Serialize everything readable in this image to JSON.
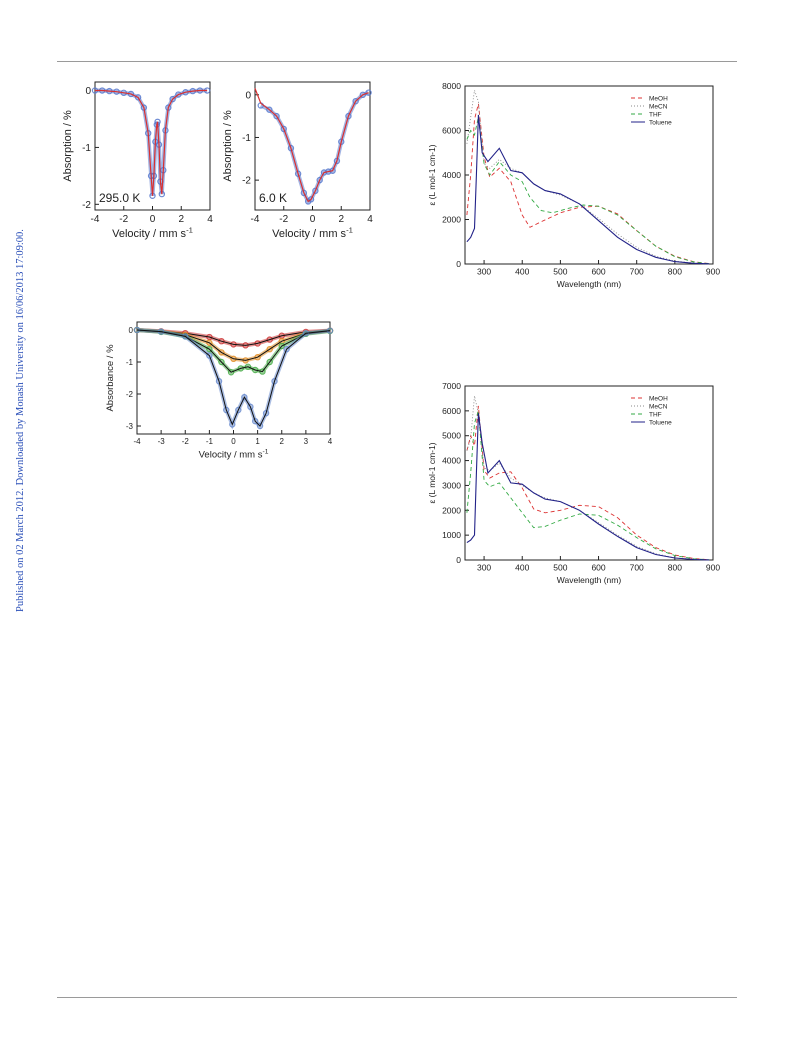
{
  "page": {
    "side_note": "Published on 02 March 2012. Downloaded by Monash University on 16/06/2013 17:09:00."
  },
  "figures": {
    "moss_a": {
      "temp_label": "295.0 K"
    },
    "moss_b": {
      "temp_label": "6.0 K"
    }
  },
  "chart_data": [
    {
      "id": "mossbauer-295K",
      "type": "scatter",
      "title": "",
      "xlabel": "Velocity / mm s",
      "xlabel_sup": "-1",
      "ylabel": "Absorption / %",
      "xlim": [
        -4,
        4
      ],
      "ylim": [
        -2.1,
        0.15
      ],
      "xticks": [
        -4,
        -2,
        0,
        2,
        4
      ],
      "yticks": [
        0,
        -1,
        -2
      ],
      "annotation": "295.0 K",
      "series": [
        {
          "kind": "points",
          "color": "#5577cc",
          "x": [
            -4,
            -3.5,
            -3,
            -2.5,
            -2,
            -1.5,
            -1,
            -0.6,
            -0.3,
            -0.1,
            0,
            0.1,
            0.2,
            0.3,
            0.35,
            0.45,
            0.55,
            0.65,
            0.75,
            0.9,
            1.1,
            1.4,
            1.8,
            2.3,
            2.8,
            3.3,
            3.8
          ],
          "y": [
            0,
            0,
            -0.01,
            -0.02,
            -0.04,
            -0.06,
            -0.12,
            -0.3,
            -0.75,
            -1.5,
            -1.85,
            -1.5,
            -0.9,
            -0.6,
            -0.55,
            -0.95,
            -1.6,
            -1.82,
            -1.4,
            -0.7,
            -0.3,
            -0.15,
            -0.07,
            -0.03,
            -0.01,
            0,
            0
          ]
        },
        {
          "kind": "fit",
          "color": "#d93030",
          "x": [
            -4,
            -3.5,
            -3,
            -2.5,
            -2,
            -1.5,
            -1,
            -0.6,
            -0.3,
            -0.1,
            0,
            0.1,
            0.2,
            0.3,
            0.35,
            0.45,
            0.55,
            0.65,
            0.75,
            0.9,
            1.1,
            1.4,
            1.8,
            2.3,
            2.8,
            3.3,
            3.8
          ],
          "y": [
            0,
            0,
            -0.01,
            -0.02,
            -0.04,
            -0.06,
            -0.12,
            -0.3,
            -0.75,
            -1.5,
            -1.85,
            -1.5,
            -0.9,
            -0.6,
            -0.55,
            -0.95,
            -1.6,
            -1.82,
            -1.4,
            -0.7,
            -0.3,
            -0.15,
            -0.07,
            -0.03,
            -0.01,
            0,
            0
          ]
        }
      ]
    },
    {
      "id": "mossbauer-6K",
      "type": "scatter",
      "title": "",
      "xlabel": "Velocity / mm s",
      "xlabel_sup": "-1",
      "ylabel": "Absorption / %",
      "xlim": [
        -4,
        4
      ],
      "ylim": [
        -2.7,
        0.3
      ],
      "xticks": [
        -4,
        -2,
        0,
        2,
        4
      ],
      "yticks": [
        0,
        -1,
        -2
      ],
      "annotation": "6.0 K",
      "series": [
        {
          "kind": "points",
          "color": "#5577cc",
          "x": [
            -3.6,
            -3,
            -2.5,
            -2,
            -1.5,
            -1,
            -0.6,
            -0.3,
            -0.1,
            0.2,
            0.5,
            0.8,
            1.1,
            1.4,
            1.7,
            2,
            2.5,
            3,
            3.5,
            3.9
          ],
          "y": [
            -0.25,
            -0.35,
            -0.5,
            -0.8,
            -1.25,
            -1.85,
            -2.3,
            -2.5,
            -2.45,
            -2.25,
            -2.0,
            -1.82,
            -1.8,
            -1.78,
            -1.55,
            -1.1,
            -0.5,
            -0.15,
            0,
            0.05
          ]
        },
        {
          "kind": "fit",
          "color": "#d93030",
          "x": [
            -4,
            -3.6,
            -3,
            -2.5,
            -2,
            -1.5,
            -1,
            -0.6,
            -0.3,
            -0.1,
            0.2,
            0.5,
            0.8,
            1.1,
            1.4,
            1.7,
            2,
            2.5,
            3,
            3.5,
            3.9
          ],
          "y": [
            0.15,
            -0.2,
            -0.35,
            -0.5,
            -0.8,
            -1.25,
            -1.85,
            -2.3,
            -2.5,
            -2.45,
            -2.25,
            -2.0,
            -1.82,
            -1.8,
            -1.78,
            -1.55,
            -1.1,
            -0.5,
            -0.15,
            0,
            0.05
          ]
        }
      ]
    },
    {
      "id": "mossbauer-variable",
      "type": "scatter",
      "title": "",
      "xlabel": "Velocity / mm s",
      "xlabel_sup": "-1",
      "ylabel": "Absorbance / %",
      "xlim": [
        -4,
        4
      ],
      "ylim": [
        -3.25,
        0.25
      ],
      "xticks": [
        -4,
        -3,
        -2,
        -1,
        0,
        1,
        2,
        3,
        4
      ],
      "yticks": [
        0,
        -1,
        -2,
        -3
      ],
      "series": [
        {
          "kind": "points+fit",
          "color": "#cc3333",
          "x": [
            -4,
            -3,
            -2,
            -1,
            -0.5,
            0,
            0.5,
            1,
            1.5,
            2,
            3,
            4
          ],
          "y": [
            0,
            -0.04,
            -0.1,
            -0.22,
            -0.35,
            -0.45,
            -0.48,
            -0.42,
            -0.3,
            -0.18,
            -0.06,
            -0.02
          ]
        },
        {
          "kind": "points+fit",
          "color": "#e08a20",
          "x": [
            -4,
            -3,
            -2,
            -1,
            -0.5,
            0,
            0.5,
            1,
            1.5,
            2,
            3,
            4
          ],
          "y": [
            0,
            -0.05,
            -0.15,
            -0.4,
            -0.7,
            -0.9,
            -0.95,
            -0.85,
            -0.6,
            -0.35,
            -0.1,
            -0.02
          ]
        },
        {
          "kind": "points+fit",
          "color": "#44aa44",
          "x": [
            -4,
            -3,
            -2,
            -1,
            -0.5,
            -0.1,
            0.3,
            0.6,
            0.9,
            1.2,
            1.5,
            2,
            3,
            4
          ],
          "y": [
            0,
            -0.06,
            -0.2,
            -0.6,
            -1.0,
            -1.32,
            -1.2,
            -1.15,
            -1.25,
            -1.3,
            -1.0,
            -0.5,
            -0.12,
            -0.03
          ]
        },
        {
          "kind": "points+fit",
          "color": "#6688cc",
          "x": [
            -4,
            -3,
            -2,
            -1,
            -0.6,
            -0.3,
            -0.05,
            0.2,
            0.45,
            0.7,
            0.9,
            1.1,
            1.35,
            1.7,
            2.2,
            3,
            4
          ],
          "y": [
            0,
            -0.05,
            -0.2,
            -0.8,
            -1.6,
            -2.5,
            -2.95,
            -2.5,
            -2.1,
            -2.4,
            -2.85,
            -3.0,
            -2.6,
            -1.6,
            -0.6,
            -0.1,
            -0.02
          ]
        }
      ]
    },
    {
      "id": "uvvis-1",
      "type": "line",
      "title": "",
      "xlabel": "Wavelength (nm)",
      "ylabel": "ε (L mol",
      "ylabel_full": "ε (L mol-1 cm-1)",
      "xlim": [
        250,
        900
      ],
      "ylim": [
        0,
        8000
      ],
      "xticks": [
        300,
        400,
        500,
        600,
        700,
        800,
        900
      ],
      "yticks": [
        0,
        2000,
        4000,
        6000,
        8000
      ],
      "legend": {
        "placement": "top-right",
        "entries": [
          "MeOH",
          "MeCN",
          "THF",
          "Toluene"
        ]
      },
      "series": [
        {
          "name": "MeOH",
          "color": "#dd3333",
          "dash": "4,3",
          "x": [
            255,
            265,
            275,
            285,
            300,
            315,
            340,
            370,
            400,
            420,
            450,
            500,
            550,
            600,
            650,
            700,
            750,
            800,
            850,
            890
          ],
          "y": [
            2200,
            4000,
            6500,
            7200,
            4800,
            3900,
            4300,
            3700,
            2200,
            1650,
            1900,
            2300,
            2550,
            2600,
            2250,
            1500,
            800,
            350,
            100,
            20
          ]
        },
        {
          "name": "MeCN",
          "color": "#888888",
          "dash": "1,2",
          "x": [
            255,
            265,
            275,
            285,
            300,
            315,
            340,
            370,
            400,
            430,
            460,
            500,
            550,
            600,
            650,
            700,
            750,
            800,
            850,
            890
          ],
          "y": [
            5400,
            6600,
            7800,
            7300,
            4500,
            4300,
            4700,
            4300,
            4100,
            3600,
            3300,
            3100,
            2700,
            2050,
            1350,
            750,
            350,
            130,
            40,
            10
          ]
        },
        {
          "name": "THF",
          "color": "#33aa44",
          "dash": "4,3",
          "x": [
            255,
            265,
            275,
            285,
            300,
            315,
            340,
            370,
            400,
            420,
            450,
            480,
            520,
            560,
            600,
            650,
            700,
            750,
            800,
            850,
            890
          ],
          "y": [
            5600,
            6000,
            5800,
            6600,
            4500,
            4000,
            4600,
            4000,
            3700,
            3000,
            2400,
            2300,
            2500,
            2650,
            2600,
            2200,
            1500,
            800,
            330,
            90,
            15
          ]
        },
        {
          "name": "Toluene",
          "color": "#222288",
          "dash": "",
          "x": [
            255,
            265,
            275,
            280,
            285,
            295,
            310,
            340,
            370,
            400,
            430,
            460,
            500,
            550,
            600,
            650,
            700,
            750,
            800,
            850,
            890
          ],
          "y": [
            1000,
            1200,
            1600,
            4000,
            6700,
            5000,
            4600,
            5200,
            4200,
            4100,
            3600,
            3300,
            3150,
            2700,
            1950,
            1200,
            650,
            300,
            110,
            30,
            8
          ]
        }
      ]
    },
    {
      "id": "uvvis-2",
      "type": "line",
      "title": "",
      "xlabel": "Wavelength (nm)",
      "ylabel": "ε (L mol",
      "ylabel_full": "ε (L mol-1 cm-1)",
      "xlim": [
        250,
        900
      ],
      "ylim": [
        0,
        7000
      ],
      "xticks": [
        300,
        400,
        500,
        600,
        700,
        800,
        900
      ],
      "yticks": [
        0,
        1000,
        2000,
        3000,
        4000,
        5000,
        6000,
        7000
      ],
      "legend": {
        "placement": "top-right",
        "entries": [
          "MeOH",
          "MeCN",
          "THF",
          "Toluene"
        ]
      },
      "series": [
        {
          "name": "MeOH",
          "color": "#dd3333",
          "dash": "4,3",
          "x": [
            255,
            265,
            275,
            285,
            300,
            315,
            340,
            370,
            400,
            430,
            460,
            500,
            550,
            600,
            650,
            700,
            750,
            800,
            850,
            890
          ],
          "y": [
            4400,
            5000,
            4600,
            6200,
            3600,
            3300,
            3500,
            3550,
            2900,
            2050,
            1900,
            2000,
            2200,
            2150,
            1700,
            1000,
            500,
            200,
            60,
            10
          ]
        },
        {
          "name": "MeCN",
          "color": "#888888",
          "dash": "1,2",
          "x": [
            255,
            265,
            275,
            285,
            300,
            315,
            340,
            370,
            400,
            430,
            460,
            500,
            550,
            600,
            650,
            700,
            750,
            800,
            850,
            890
          ],
          "y": [
            4400,
            4900,
            6600,
            5900,
            3700,
            3600,
            3900,
            3300,
            3000,
            2700,
            2500,
            2350,
            2000,
            1500,
            1000,
            550,
            250,
            90,
            30,
            8
          ]
        },
        {
          "name": "THF",
          "color": "#33aa44",
          "dash": "4,3",
          "x": [
            255,
            265,
            275,
            285,
            300,
            315,
            340,
            370,
            400,
            430,
            460,
            500,
            550,
            600,
            650,
            700,
            750,
            800,
            850,
            890
          ],
          "y": [
            1900,
            3500,
            5500,
            6000,
            3200,
            2950,
            3100,
            2500,
            1900,
            1300,
            1350,
            1600,
            1850,
            1800,
            1400,
            900,
            450,
            180,
            50,
            10
          ]
        },
        {
          "name": "Toluene",
          "color": "#222288",
          "dash": "",
          "x": [
            255,
            265,
            275,
            280,
            285,
            295,
            310,
            340,
            370,
            400,
            430,
            460,
            500,
            550,
            600,
            650,
            700,
            750,
            800,
            850,
            890
          ],
          "y": [
            700,
            800,
            1000,
            3500,
            5900,
            4700,
            3500,
            4000,
            3100,
            3050,
            2700,
            2450,
            2350,
            2000,
            1450,
            950,
            500,
            220,
            80,
            20,
            5
          ]
        }
      ]
    }
  ]
}
